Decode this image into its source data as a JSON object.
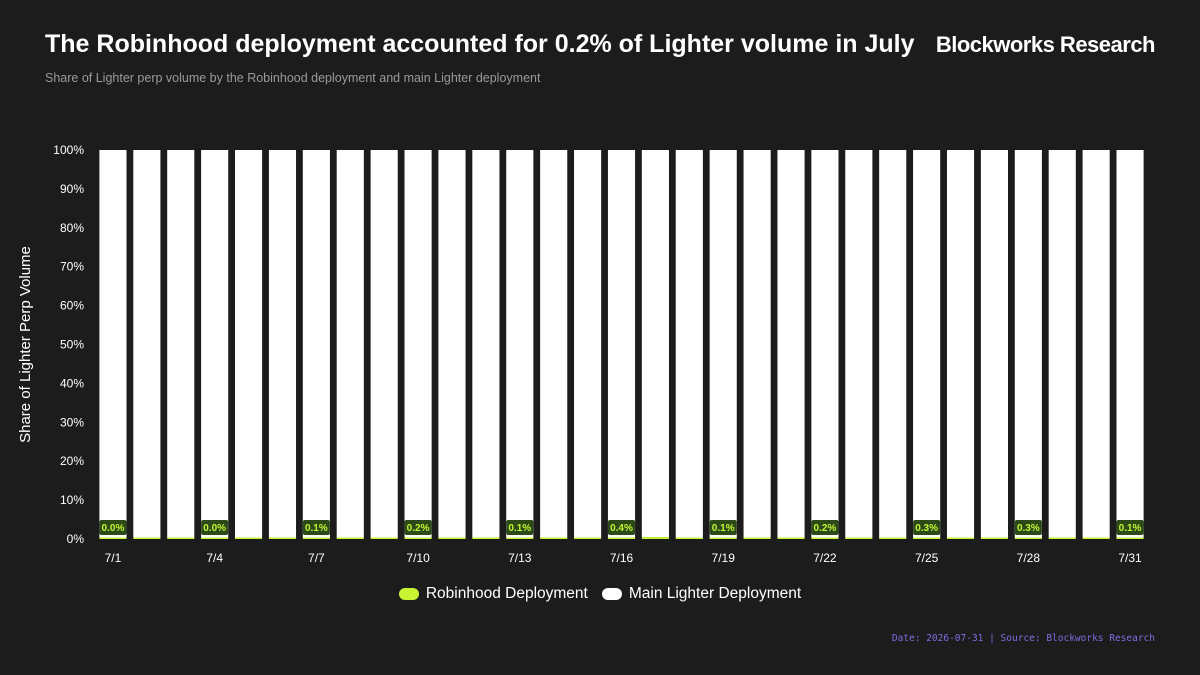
{
  "header": {
    "title": "The Robinhood deployment accounted for 0.2% of Lighter volume in July",
    "subtitle": "Share of Lighter perp volume by the Robinhood deployment and main Lighter deployment",
    "brand": "Blockworks Research"
  },
  "footer": {
    "text": "Date: 2026-07-31 | Source: Blockworks Research"
  },
  "colors": {
    "background": "#1c1c1c",
    "robinhood": "#c6f432",
    "main": "#ffffff",
    "label_bg": "#2b4a18",
    "axis_text": "#ffffff",
    "footer_text": "#7b6ee0"
  },
  "chart_data": {
    "type": "bar",
    "stacked": true,
    "normalized": true,
    "ylabel": "Share of Lighter Perp Volume",
    "ylim": [
      0,
      100
    ],
    "yticks": [
      "0%",
      "10%",
      "20%",
      "30%",
      "40%",
      "50%",
      "60%",
      "70%",
      "80%",
      "90%",
      "100%"
    ],
    "categories": [
      "7/1",
      "7/2",
      "7/3",
      "7/4",
      "7/5",
      "7/6",
      "7/7",
      "7/8",
      "7/9",
      "7/10",
      "7/11",
      "7/12",
      "7/13",
      "7/14",
      "7/15",
      "7/16",
      "7/17",
      "7/18",
      "7/19",
      "7/20",
      "7/21",
      "7/22",
      "7/23",
      "7/24",
      "7/25",
      "7/26",
      "7/27",
      "7/28",
      "7/29",
      "7/30",
      "7/31"
    ],
    "xtick_labels": [
      "7/1",
      "7/4",
      "7/7",
      "7/10",
      "7/13",
      "7/16",
      "7/19",
      "7/22",
      "7/25",
      "7/28",
      "7/31"
    ],
    "series": [
      {
        "name": "Robinhood Deployment",
        "color": "#c6f432",
        "values": [
          0.0,
          0.0,
          0.0,
          0.0,
          0.0,
          0.0,
          0.1,
          0.1,
          0.1,
          0.2,
          0.1,
          0.1,
          0.1,
          0.2,
          0.3,
          0.4,
          0.5,
          0.3,
          0.1,
          0.1,
          0.1,
          0.2,
          0.2,
          0.3,
          0.3,
          0.2,
          0.2,
          0.3,
          0.2,
          0.1,
          0.1
        ]
      },
      {
        "name": "Main Lighter Deployment",
        "color": "#ffffff",
        "values": [
          100.0,
          100.0,
          100.0,
          100.0,
          100.0,
          100.0,
          99.9,
          99.9,
          99.9,
          99.8,
          99.9,
          99.9,
          99.9,
          99.8,
          99.7,
          99.6,
          99.5,
          99.7,
          99.9,
          99.9,
          99.9,
          99.8,
          99.8,
          99.7,
          99.7,
          99.8,
          99.8,
          99.7,
          99.8,
          99.9,
          99.9
        ]
      }
    ],
    "data_labels": [
      {
        "category": "7/1",
        "text": "0.0%"
      },
      {
        "category": "7/4",
        "text": "0.0%"
      },
      {
        "category": "7/7",
        "text": "0.1%"
      },
      {
        "category": "7/10",
        "text": "0.2%"
      },
      {
        "category": "7/13",
        "text": "0.1%"
      },
      {
        "category": "7/16",
        "text": "0.4%"
      },
      {
        "category": "7/19",
        "text": "0.1%"
      },
      {
        "category": "7/22",
        "text": "0.2%"
      },
      {
        "category": "7/25",
        "text": "0.3%"
      },
      {
        "category": "7/28",
        "text": "0.3%"
      },
      {
        "category": "7/31",
        "text": "0.1%"
      }
    ],
    "legend_position": "bottom-center",
    "grid": false
  }
}
